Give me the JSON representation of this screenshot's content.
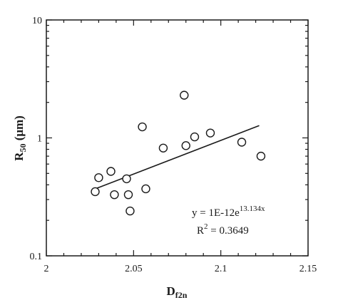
{
  "chart_data": {
    "type": "scatter",
    "xlabel": {
      "main": "D",
      "sub": "f2n"
    },
    "ylabel": {
      "main": "R",
      "sub": "50",
      "unit": " (μm)"
    },
    "xlim": [
      2.0,
      2.15
    ],
    "ylim": [
      0.1,
      10
    ],
    "yscale": "log",
    "grid": false,
    "x_ticks": [
      2.0,
      2.05,
      2.1,
      2.15
    ],
    "x_tick_labels": [
      "2",
      "2.05",
      "2.1",
      "2.15"
    ],
    "y_ticks": [
      0.1,
      1,
      10
    ],
    "y_tick_labels": [
      "0.1",
      "1",
      "10"
    ],
    "series": [
      {
        "marker": "open-circle",
        "points": [
          {
            "x": 2.028,
            "y": 0.35
          },
          {
            "x": 2.03,
            "y": 0.46
          },
          {
            "x": 2.037,
            "y": 0.52
          },
          {
            "x": 2.039,
            "y": 0.33
          },
          {
            "x": 2.046,
            "y": 0.45
          },
          {
            "x": 2.047,
            "y": 0.33
          },
          {
            "x": 2.048,
            "y": 0.24
          },
          {
            "x": 2.055,
            "y": 1.24
          },
          {
            "x": 2.057,
            "y": 0.37
          },
          {
            "x": 2.067,
            "y": 0.82
          },
          {
            "x": 2.079,
            "y": 2.3
          },
          {
            "x": 2.08,
            "y": 0.86
          },
          {
            "x": 2.085,
            "y": 1.02
          },
          {
            "x": 2.094,
            "y": 1.1
          },
          {
            "x": 2.112,
            "y": 0.92
          },
          {
            "x": 2.123,
            "y": 0.7
          }
        ]
      }
    ],
    "fit_line": {
      "x": [
        2.028,
        2.122
      ],
      "a": 1e-12,
      "b": 13.134
    },
    "annotations": {
      "equation_base": "y = 1E-12e",
      "equation_exp": "13.134x",
      "r2_base": "R",
      "r2_exp": "2",
      "r2_value": " = 0.3649"
    }
  }
}
